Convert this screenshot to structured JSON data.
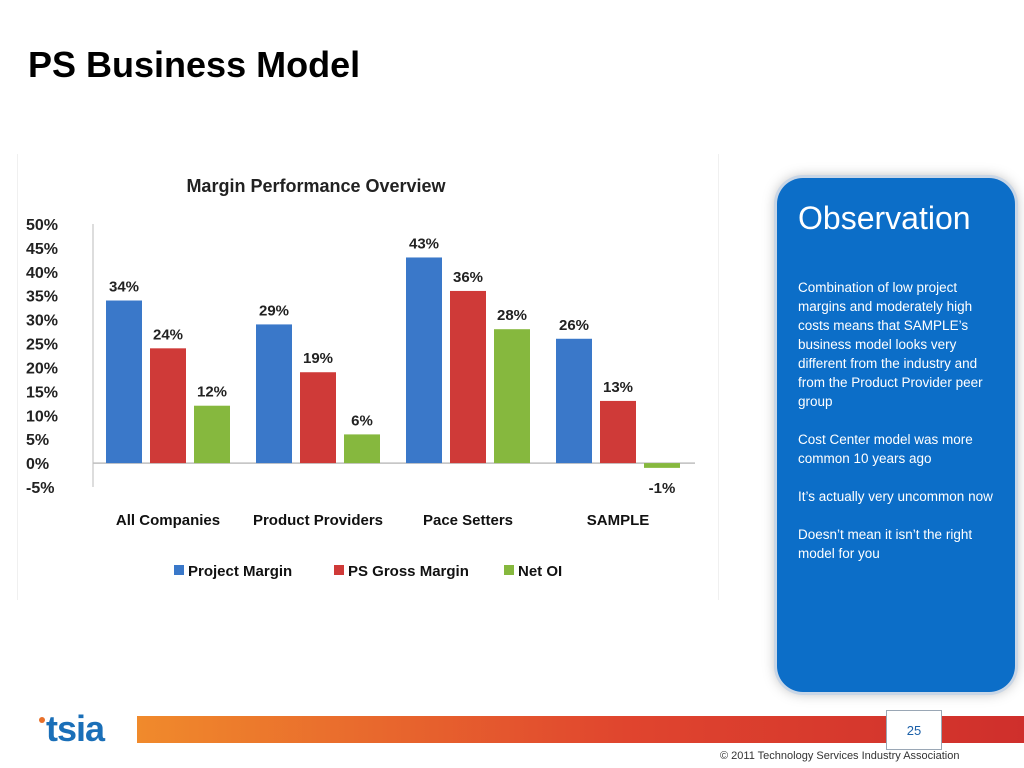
{
  "slide": {
    "title": "PS Business Model",
    "page_number": "25",
    "copyright": "© 2011 Technology Services Industry Association",
    "logo_text": "tsia"
  },
  "observation": {
    "title": "Observation",
    "items": [
      "Combination of low project margins and moderately high costs means that SAMPLE’s business model looks very different from the industry and from the Product Provider peer group",
      "Cost Center model was more common 10 years ago",
      "It’s actually very uncommon now",
      "Doesn’t mean it isn’t the right model for you"
    ]
  },
  "colors": {
    "project_margin": "#3a78c9",
    "ps_gross_margin": "#cf3a38",
    "net_oi": "#86b83e",
    "panel": "#0c6ec8"
  },
  "chart_data": {
    "type": "bar",
    "title": "Margin Performance Overview",
    "categories": [
      "All Companies",
      "Product Providers",
      "Pace Setters",
      "SAMPLE"
    ],
    "series": [
      {
        "name": "Project Margin",
        "values": [
          34,
          29,
          43,
          26
        ],
        "labels": [
          "34%",
          "29%",
          "43%",
          "26%"
        ]
      },
      {
        "name": "PS Gross Margin",
        "values": [
          24,
          19,
          36,
          13
        ],
        "labels": [
          "24%",
          "19%",
          "36%",
          "13%"
        ]
      },
      {
        "name": "Net OI",
        "values": [
          12,
          6,
          28,
          -1
        ],
        "labels": [
          "12%",
          "6%",
          "28%",
          "-1%"
        ]
      }
    ],
    "yticks": [
      "50%",
      "45%",
      "40%",
      "35%",
      "30%",
      "25%",
      "20%",
      "15%",
      "10%",
      "5%",
      "0%",
      "-5%"
    ],
    "ylim": [
      -5,
      50
    ],
    "grid": false,
    "legend": "bottom"
  }
}
